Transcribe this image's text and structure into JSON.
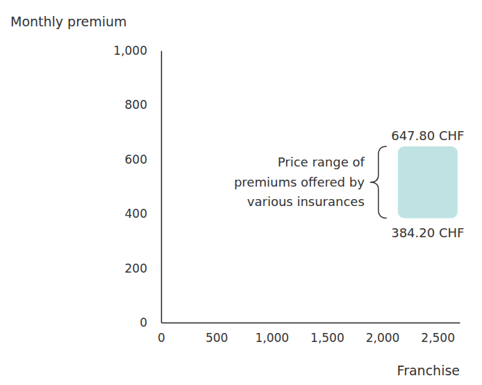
{
  "chart_data": {
    "type": "range_bar",
    "x_label": "Franchise",
    "y_label": "Monthly premium",
    "annotation": [
      "Price range of",
      "premiums offered by",
      "various insurances"
    ],
    "xlim": [
      0,
      2700
    ],
    "xticks": [
      0,
      500,
      {
        "value": 1000,
        "label": "1,000"
      },
      {
        "value": 1500,
        "label": "1,500"
      },
      {
        "value": 2000,
        "label": "2,000"
      },
      {
        "value": 2500,
        "label": "2,500"
      }
    ],
    "ylim": [
      0,
      1000
    ],
    "yticks": [
      0,
      200,
      400,
      600,
      800,
      {
        "value": 1000,
        "label": "1,000"
      }
    ],
    "x_start": [
      2140
    ],
    "x_end": [
      2680
    ],
    "values": [
      [
        384.2,
        647.8
      ]
    ],
    "value_labels": [
      [
        "384.20 CHF",
        "647.80 CHF"
      ]
    ],
    "color": "#bfe3e3",
    "grid": false,
    "data_labels": true
  }
}
